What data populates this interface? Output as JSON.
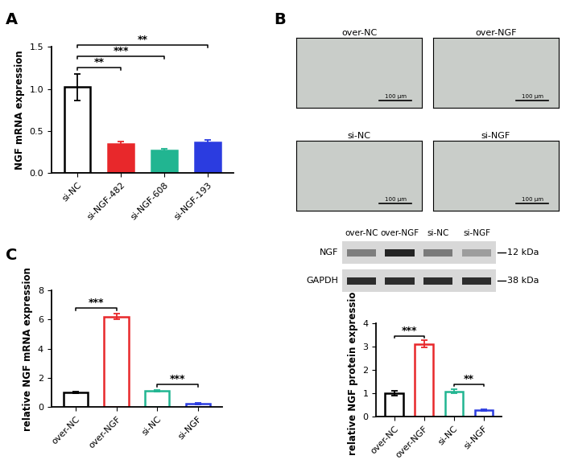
{
  "panel_labels": [
    "A",
    "B",
    "C"
  ],
  "chart_data": [
    {
      "type": "bar",
      "ylabel": "NGF mRNA expression",
      "categories": [
        "si-NC",
        "si-NGF-482",
        "si-NGF-608",
        "si-NGF-193"
      ],
      "values": [
        1.02,
        0.35,
        0.27,
        0.37
      ],
      "errors": [
        0.16,
        0.03,
        0.02,
        0.02
      ],
      "colors": [
        "#000000",
        "#e8282b",
        "#21b591",
        "#2b3ce0"
      ],
      "ylim": [
        0,
        1.5
      ],
      "yticks": [
        {
          "value": 0,
          "label": "0.0"
        },
        {
          "value": 0.5,
          "label": "0.5"
        },
        {
          "value": 1,
          "label": "1.0"
        },
        {
          "value": 1.5,
          "label": "1.5"
        }
      ],
      "annotations": [
        {
          "between": [
            "si-NC",
            "si-NGF-482"
          ],
          "text": "**"
        },
        {
          "between": [
            "si-NC",
            "si-NGF-608"
          ],
          "text": "***"
        },
        {
          "between": [
            "si-NC",
            "si-NGF-193"
          ],
          "text": "**"
        }
      ]
    },
    {
      "type": "bar",
      "ylabel": "relative NGF mRNA expression",
      "categories": [
        "over-NC",
        "over-NGF",
        "si-NC",
        "si-NGF"
      ],
      "values": [
        1.0,
        6.2,
        1.1,
        0.25
      ],
      "errors": [
        0.05,
        0.2,
        0.05,
        0.05
      ],
      "colors": [
        "#000000",
        "#e8282b",
        "#21b591",
        "#2b3ce0"
      ],
      "ylim": [
        0,
        8
      ],
      "yticks": [
        0,
        2,
        4,
        6,
        8
      ],
      "annotations": [
        {
          "between": [
            "over-NC",
            "over-NGF"
          ],
          "text": "***"
        },
        {
          "between": [
            "si-NC",
            "si-NGF"
          ],
          "text": "***"
        }
      ]
    },
    {
      "type": "bar",
      "ylabel": "relative NGF protein expression",
      "categories": [
        "over-NC",
        "over-NGF",
        "si-NC",
        "si-NGF"
      ],
      "values": [
        1.0,
        3.1,
        1.08,
        0.27
      ],
      "errors": [
        0.1,
        0.15,
        0.1,
        0.03
      ],
      "colors": [
        "#000000",
        "#e8282b",
        "#21b591",
        "#2b3ce0"
      ],
      "ylim": [
        0,
        4
      ],
      "yticks": [
        0,
        1,
        2,
        3,
        4
      ],
      "annotations": [
        {
          "between": [
            "over-NC",
            "over-NGF"
          ],
          "text": "***"
        },
        {
          "between": [
            "si-NC",
            "si-NGF"
          ],
          "text": "**"
        }
      ]
    }
  ],
  "micrographs": {
    "panels": [
      "over-NC",
      "over-NGF",
      "si-NC",
      "si-NGF"
    ],
    "scale_bar": "100 μm"
  },
  "western_blot": {
    "lanes": [
      "over-NC",
      "over-NGF",
      "si-NC",
      "si-NGF"
    ],
    "bands": [
      {
        "protein": "NGF",
        "size": "12 kDa"
      },
      {
        "protein": "GAPDH",
        "size": "38 kDa"
      }
    ]
  }
}
